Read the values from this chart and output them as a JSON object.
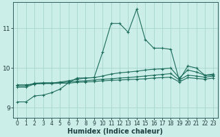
{
  "xlabel": "Humidex (Indice chaleur)",
  "background_color": "#cceee8",
  "grid_color": "#aad8d0",
  "line_color": "#1a6b5a",
  "xlim": [
    -0.5,
    23.5
  ],
  "ylim": [
    8.75,
    11.65
  ],
  "yticks": [
    9,
    10,
    11
  ],
  "xticks": [
    0,
    1,
    2,
    3,
    4,
    5,
    6,
    7,
    8,
    9,
    10,
    11,
    12,
    13,
    14,
    15,
    16,
    17,
    18,
    19,
    20,
    21,
    22,
    23
  ],
  "curve1_x": [
    0,
    1,
    2,
    3,
    4,
    5,
    6,
    7,
    8,
    9,
    10,
    11,
    12,
    13,
    14,
    15,
    16,
    17,
    18,
    19,
    20,
    21,
    22,
    23
  ],
  "curve1_y": [
    9.15,
    9.15,
    9.3,
    9.32,
    9.38,
    9.47,
    9.63,
    9.75,
    9.75,
    9.76,
    10.4,
    11.12,
    11.12,
    10.9,
    11.48,
    10.72,
    10.5,
    10.5,
    10.47,
    9.7,
    10.05,
    10.0,
    9.82,
    9.82
  ],
  "curve2_x": [
    0,
    1,
    2,
    3,
    4,
    5,
    6,
    7,
    8,
    9,
    10,
    11,
    12,
    13,
    14,
    15,
    16,
    17,
    18,
    19,
    20,
    21,
    22,
    23
  ],
  "curve2_y": [
    9.58,
    9.58,
    9.6,
    9.62,
    9.62,
    9.65,
    9.68,
    9.72,
    9.75,
    9.76,
    9.8,
    9.85,
    9.88,
    9.9,
    9.92,
    9.95,
    9.97,
    9.98,
    10.0,
    9.75,
    9.95,
    9.9,
    9.82,
    9.85
  ],
  "curve3_x": [
    0,
    1,
    2,
    3,
    4,
    5,
    6,
    7,
    8,
    9,
    10,
    11,
    12,
    13,
    14,
    15,
    16,
    17,
    18,
    19,
    20,
    21,
    22,
    23
  ],
  "curve3_y": [
    9.55,
    9.55,
    9.62,
    9.63,
    9.63,
    9.63,
    9.65,
    9.67,
    9.68,
    9.7,
    9.72,
    9.73,
    9.75,
    9.76,
    9.78,
    9.8,
    9.82,
    9.84,
    9.86,
    9.7,
    9.82,
    9.8,
    9.77,
    9.8
  ],
  "curve4_x": [
    0,
    1,
    2,
    3,
    4,
    5,
    6,
    7,
    8,
    9,
    10,
    11,
    12,
    13,
    14,
    15,
    16,
    17,
    18,
    19,
    20,
    21,
    22,
    23
  ],
  "curve4_y": [
    9.52,
    9.52,
    9.6,
    9.61,
    9.61,
    9.62,
    9.62,
    9.64,
    9.65,
    9.66,
    9.68,
    9.69,
    9.7,
    9.71,
    9.72,
    9.73,
    9.75,
    9.76,
    9.77,
    9.65,
    9.76,
    9.74,
    9.72,
    9.75
  ]
}
